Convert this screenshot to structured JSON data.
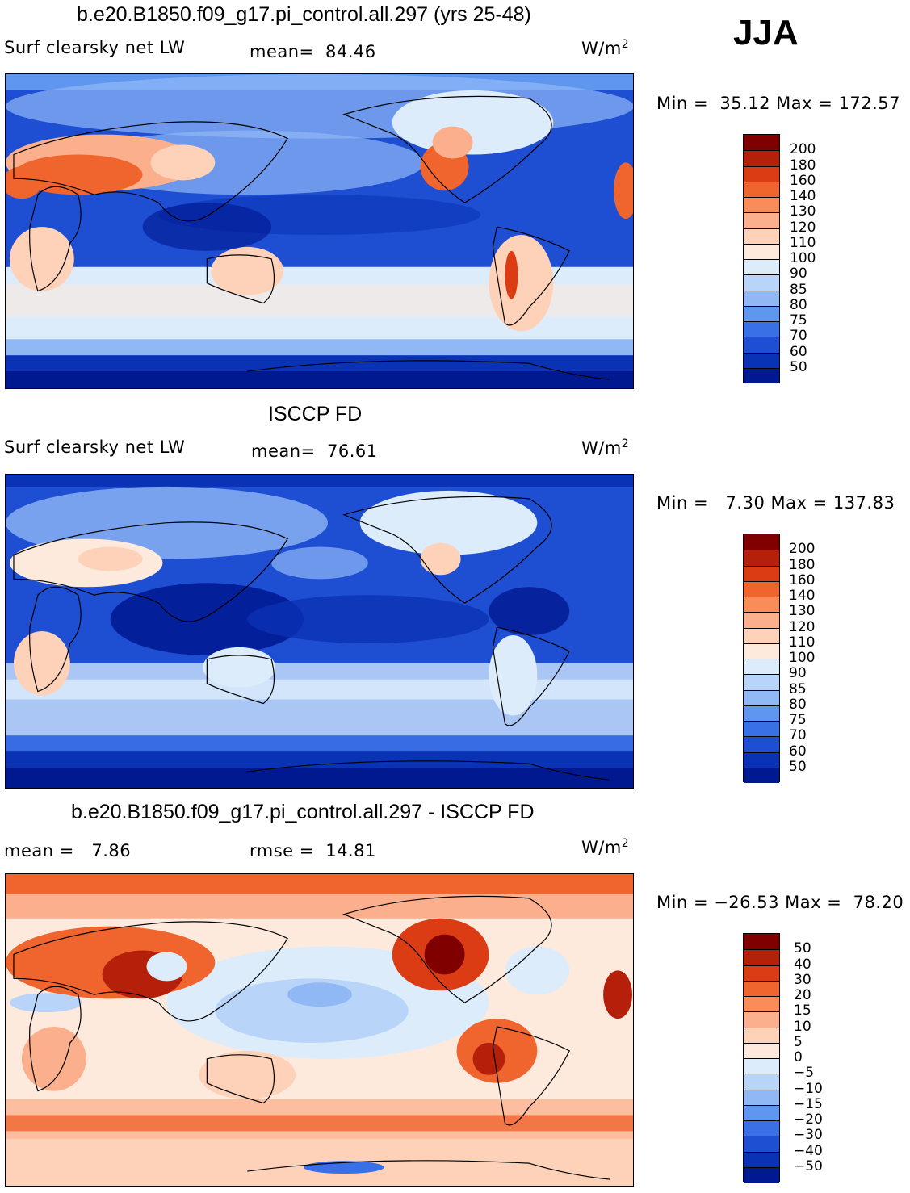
{
  "season": "JJA",
  "units_base": "W/m",
  "units_sup": "2",
  "panels": [
    {
      "title": "b.e20.B1850.f09_g17.pi_control.all.297 (yrs 25-48)",
      "variable": "Surf clearsky net LW",
      "stat1": "mean=  84.46",
      "stat2": "",
      "minmax": "Min =  35.12 Max = 172.57",
      "colorbar": {
        "labels": [
          "200",
          "180",
          "160",
          "140",
          "130",
          "120",
          "110",
          "100",
          "90",
          "85",
          "80",
          "75",
          "70",
          "60",
          "50"
        ],
        "colors": [
          "#800000",
          "#b4200a",
          "#dc3c14",
          "#f0642d",
          "#fa8c5a",
          "#fcaf8c",
          "#fdd2b9",
          "#fdeadc",
          "#dcecfb",
          "#b8d4f8",
          "#90b8f5",
          "#5f96f0",
          "#3a70e6",
          "#1e4ed2",
          "#0a32b4",
          "#001890"
        ]
      }
    },
    {
      "title": "ISCCP FD",
      "variable": "Surf clearsky net LW",
      "stat1": "mean=  76.61",
      "stat2": "",
      "minmax": "Min =   7.30 Max = 137.83",
      "colorbar": {
        "labels": [
          "200",
          "180",
          "160",
          "140",
          "130",
          "120",
          "110",
          "100",
          "90",
          "85",
          "80",
          "75",
          "70",
          "60",
          "50"
        ],
        "colors": [
          "#800000",
          "#b4200a",
          "#dc3c14",
          "#f0642d",
          "#fa8c5a",
          "#fcaf8c",
          "#fdd2b9",
          "#fdeadc",
          "#dcecfb",
          "#b8d4f8",
          "#90b8f5",
          "#5f96f0",
          "#3a70e6",
          "#1e4ed2",
          "#0a32b4",
          "#001890"
        ]
      }
    },
    {
      "title": "b.e20.B1850.f09_g17.pi_control.all.297 - ISCCP FD",
      "variable": "",
      "stat1": "mean =   7.86",
      "stat2": "rmse =  14.81",
      "minmax": "Min = −26.53 Max =  78.20",
      "colorbar": {
        "labels": [
          "50",
          "40",
          "30",
          "20",
          "15",
          "10",
          "5",
          "0",
          "−5",
          "−10",
          "−15",
          "−20",
          "−30",
          "−40",
          "−50"
        ],
        "colors": [
          "#800000",
          "#b4200a",
          "#dc3c14",
          "#f0642d",
          "#fa8c5a",
          "#fcaf8c",
          "#fdd2b9",
          "#fdeadc",
          "#dcecfb",
          "#b8d4f8",
          "#90b8f5",
          "#5f96f0",
          "#3a70e6",
          "#1e4ed2",
          "#0a32b4",
          "#001890"
        ]
      }
    }
  ]
}
